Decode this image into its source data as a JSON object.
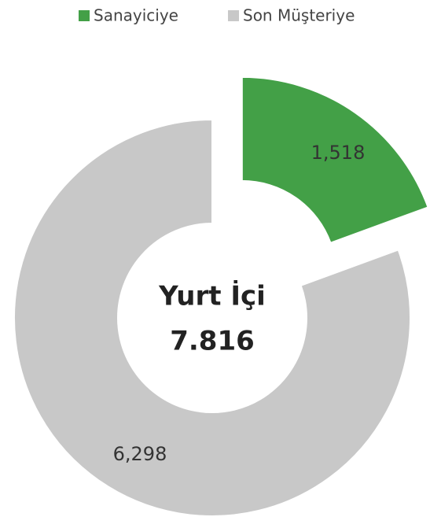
{
  "chart_data": {
    "type": "donut",
    "categories": [
      "Sanayiciye",
      "Son Müşteriye"
    ],
    "values": [
      1518,
      6298
    ],
    "value_labels": [
      "1,518",
      "6,298"
    ],
    "colors": [
      "#43a047",
      "#c8c8c8"
    ],
    "exploded": [
      true,
      false
    ],
    "center_label": [
      "Yurt İçi",
      "7.816"
    ],
    "legend": "top-right"
  }
}
